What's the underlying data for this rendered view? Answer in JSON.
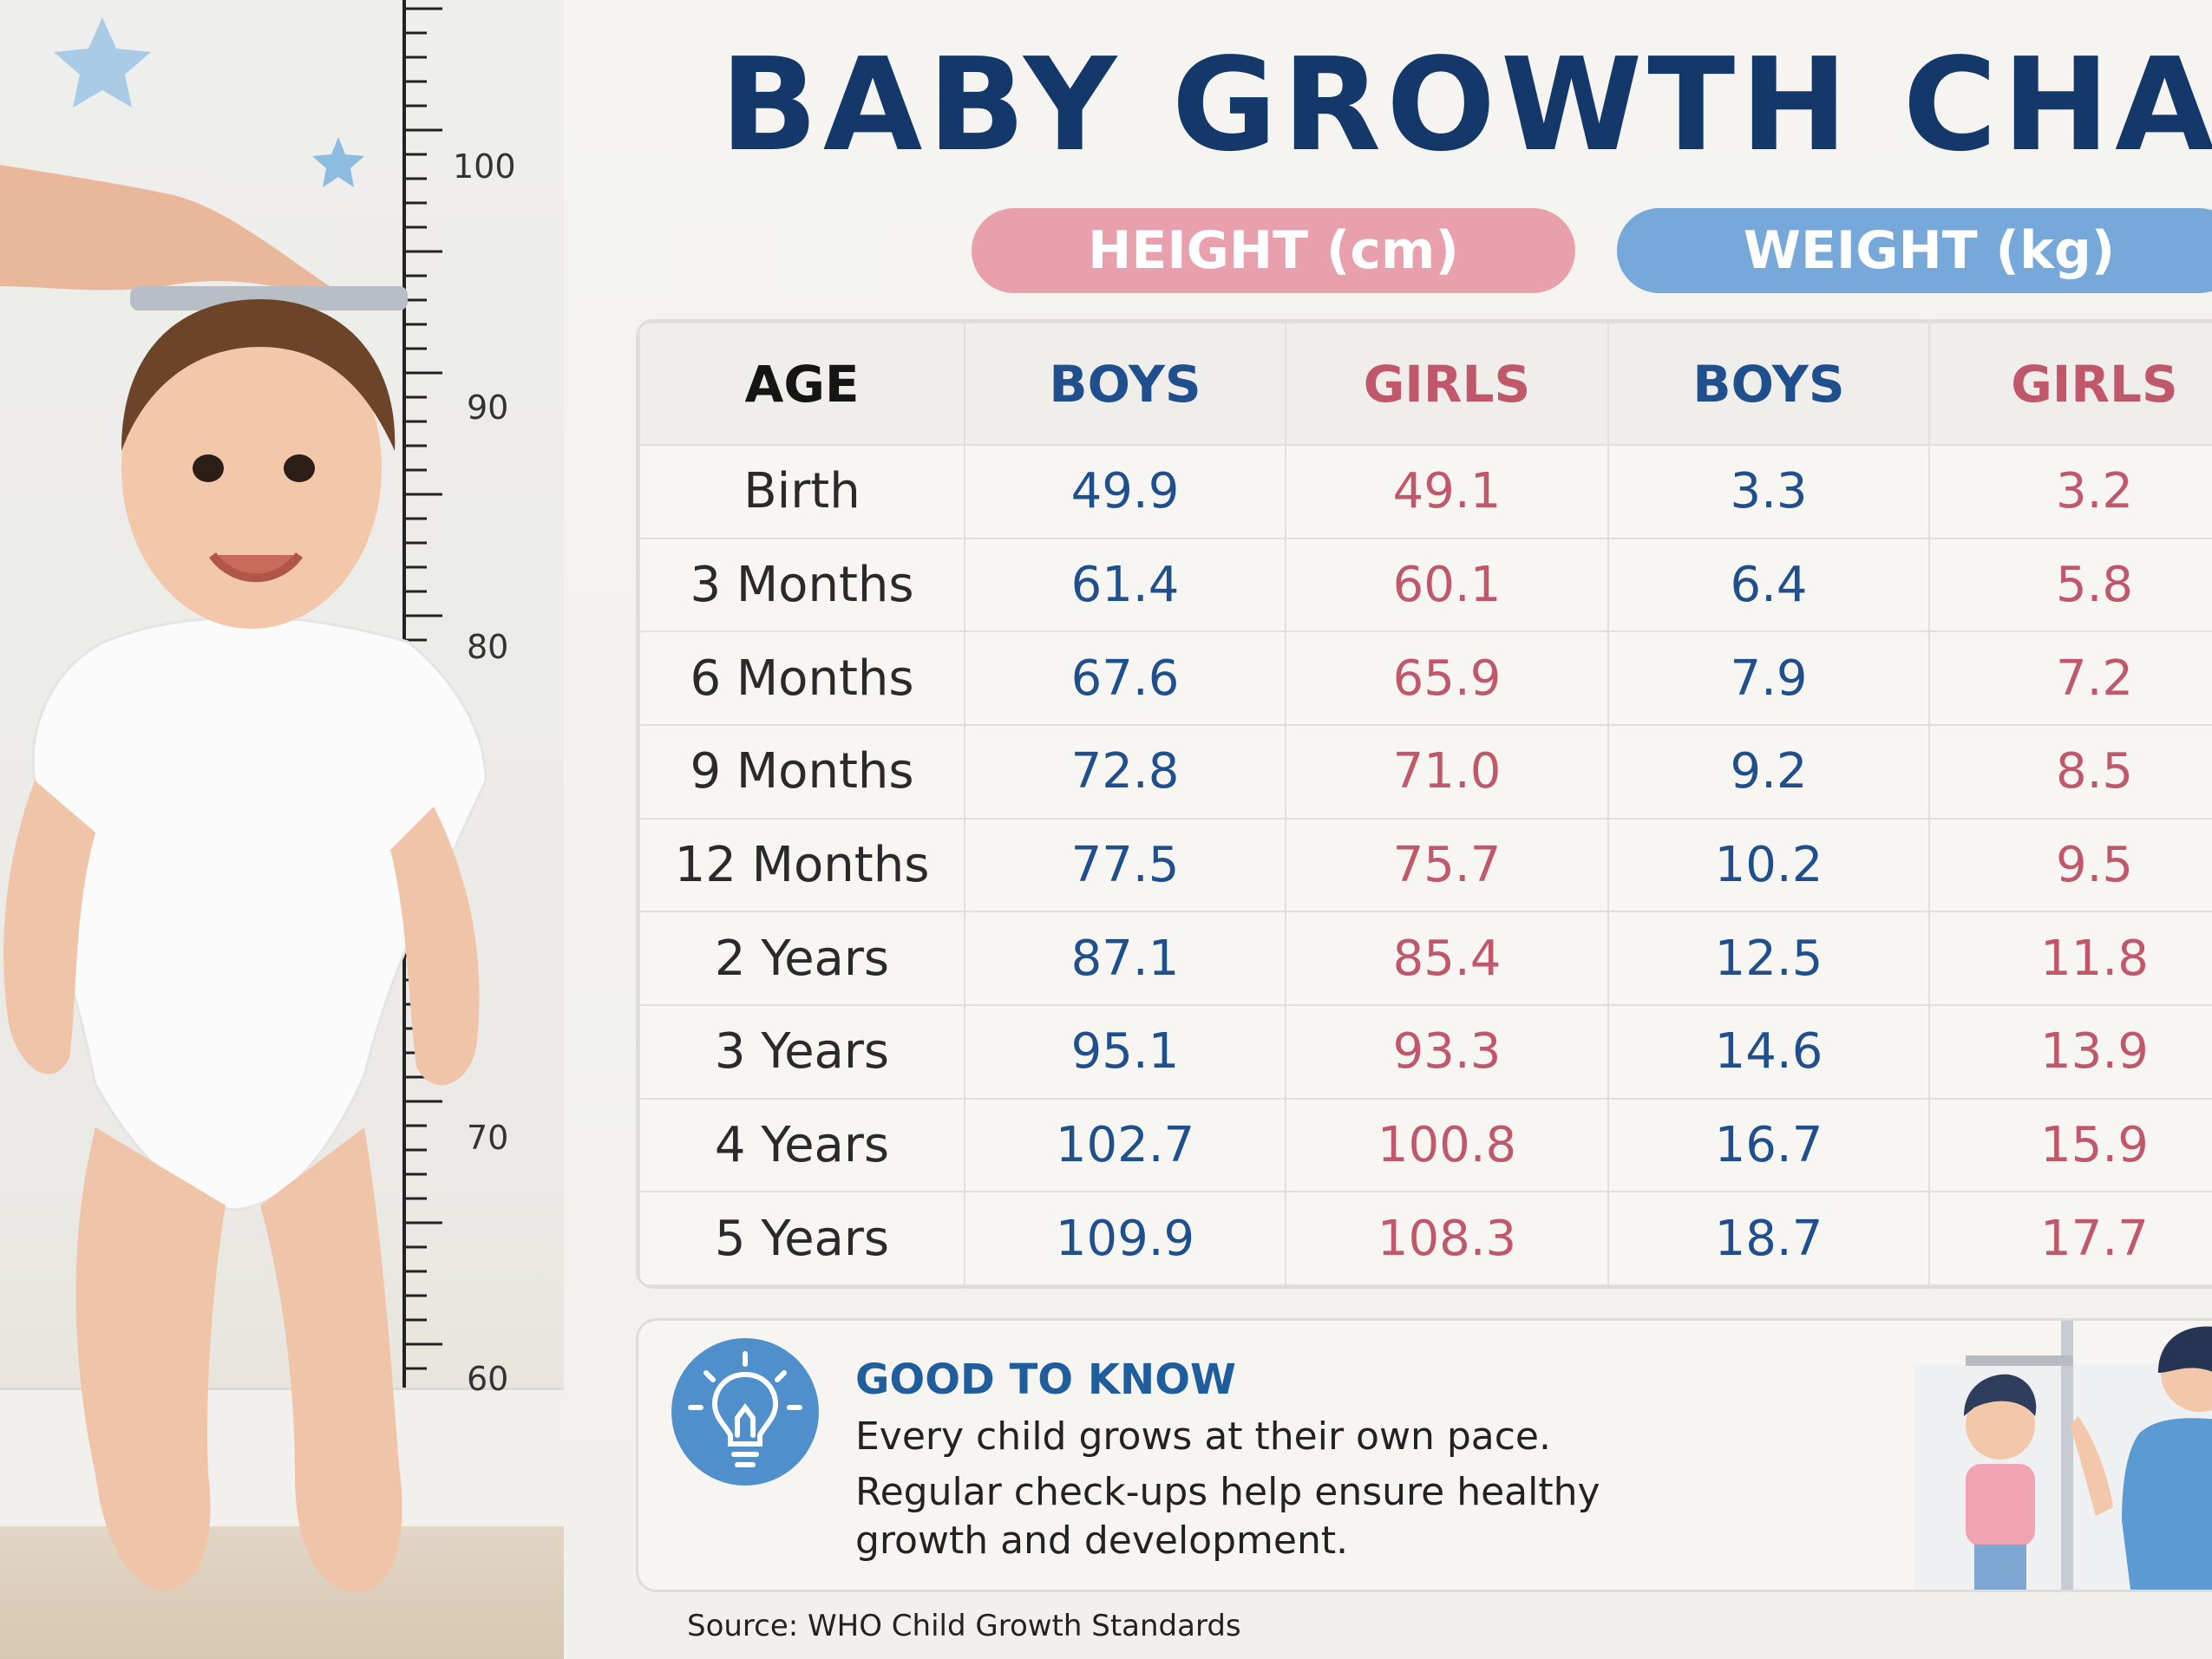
{
  "title": "BABY GROWTH CHART",
  "groups": {
    "height": "HEIGHT (cm)",
    "weight": "WEIGHT (kg)"
  },
  "table": {
    "headers": [
      "AGE",
      "BOYS",
      "GIRLS",
      "BOYS",
      "GIRLS"
    ],
    "rows": [
      [
        "Birth",
        "49.9",
        "49.1",
        "3.3",
        "3.2"
      ],
      [
        "3 Months",
        "61.4",
        "60.1",
        "6.4",
        "5.8"
      ],
      [
        "6 Months",
        "67.6",
        "65.9",
        "7.9",
        "7.2"
      ],
      [
        "9 Months",
        "72.8",
        "71.0",
        "9.2",
        "8.5"
      ],
      [
        "12 Months",
        "77.5",
        "75.7",
        "10.2",
        "9.5"
      ],
      [
        "2 Years",
        "87.1",
        "85.4",
        "12.5",
        "11.8"
      ],
      [
        "3 Years",
        "95.1",
        "93.3",
        "14.6",
        "13.9"
      ],
      [
        "4 Years",
        "102.7",
        "100.8",
        "16.7",
        "15.9"
      ],
      [
        "5 Years",
        "109.9",
        "108.3",
        "18.7",
        "17.7"
      ]
    ]
  },
  "ruler": {
    "labels": [
      "100",
      "90",
      "80",
      "70",
      "70",
      "60"
    ]
  },
  "info": {
    "heading": "GOOD TO KNOW",
    "line1": "Every child grows at their own pace.",
    "line2": "Regular check-ups help ensure healthy growth and development."
  },
  "source": "Source: WHO Child Growth Standards",
  "colors": {
    "title": "#14386a",
    "boys": "#1f4f8c",
    "girls": "#c0576a",
    "height_pill": "#e9a0ad",
    "weight_pill": "#76a9da"
  },
  "icons": [
    "star-icon",
    "lightbulb-icon"
  ]
}
